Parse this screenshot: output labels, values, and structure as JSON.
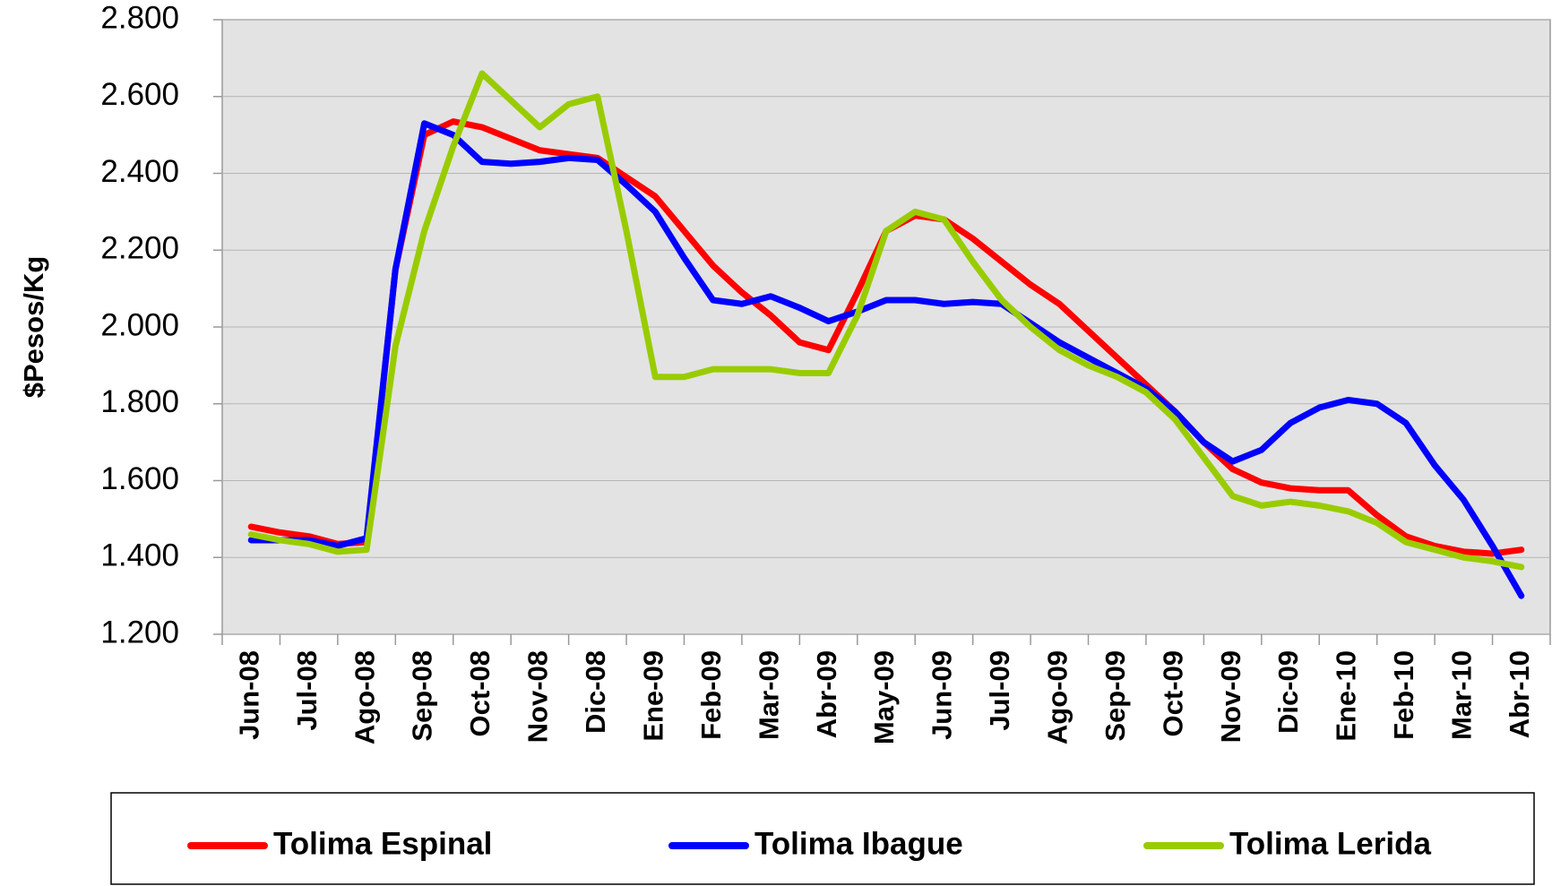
{
  "chart_data": {
    "type": "line",
    "y_label": "$Pesos/Kg",
    "categories": [
      "Jun-08",
      null,
      "Jul-08",
      null,
      "Ago-08",
      null,
      "Sep-08",
      null,
      "Oct-08",
      null,
      "Nov-08",
      null,
      "Dic-08",
      null,
      "Ene-09",
      null,
      "Feb-09",
      null,
      "Mar-09",
      null,
      "Abr-09",
      null,
      "May-09",
      null,
      "Jun-09",
      null,
      "Jul-09",
      null,
      "Ago-09",
      null,
      "Sep-09",
      null,
      "Oct-09",
      null,
      "Nov-09",
      null,
      "Dic-09",
      null,
      "Ene-10",
      null,
      "Feb-10",
      null,
      "Mar-10",
      null,
      "Abr-10"
    ],
    "series": [
      {
        "name": "Tolima Espinal",
        "color": "#ff0000",
        "values": [
          1480,
          1465,
          1455,
          1435,
          1440,
          2150,
          2500,
          2535,
          2520,
          2490,
          2460,
          2450,
          2440,
          2390,
          2340,
          2250,
          2160,
          2090,
          2030,
          1960,
          1940,
          2090,
          2250,
          2290,
          2280,
          2230,
          2170,
          2110,
          2060,
          1990,
          1920,
          1850,
          1780,
          1700,
          1630,
          1595,
          1580,
          1575,
          1575,
          1510,
          1455,
          1430,
          1415,
          1410,
          1420
        ]
      },
      {
        "name": "Tolima Ibague",
        "color": "#0000ff",
        "values": [
          1445,
          1445,
          1445,
          1430,
          1450,
          2150,
          2530,
          2500,
          2430,
          2425,
          2430,
          2440,
          2435,
          2370,
          2300,
          2180,
          2070,
          2060,
          2080,
          2050,
          2015,
          2040,
          2070,
          2070,
          2060,
          2065,
          2060,
          2010,
          1960,
          1920,
          1880,
          1840,
          1780,
          1700,
          1650,
          1680,
          1750,
          1790,
          1810,
          1800,
          1750,
          1640,
          1550,
          1430,
          1300
        ]
      },
      {
        "name": "Tolima Lerida",
        "color": "#99cc00",
        "values": [
          1460,
          1445,
          1435,
          1415,
          1420,
          1950,
          2250,
          2470,
          2660,
          2590,
          2520,
          2580,
          2600,
          2250,
          1870,
          1870,
          1890,
          1890,
          1890,
          1880,
          1880,
          2030,
          2250,
          2300,
          2280,
          2170,
          2070,
          2000,
          1940,
          1900,
          1870,
          1830,
          1760,
          1660,
          1560,
          1535,
          1545,
          1535,
          1520,
          1490,
          1440,
          1420,
          1400,
          1390,
          1375
        ]
      }
    ],
    "ylim": [
      1200,
      2800
    ],
    "yticks": [
      {
        "value": 1200,
        "label": "1.200"
      },
      {
        "value": 1400,
        "label": "1.400"
      },
      {
        "value": 1600,
        "label": "1.600"
      },
      {
        "value": 1800,
        "label": "1.800"
      },
      {
        "value": 2000,
        "label": "2.000"
      },
      {
        "value": 2200,
        "label": "2.200"
      },
      {
        "value": 2400,
        "label": "2.400"
      },
      {
        "value": 2600,
        "label": "2.600"
      },
      {
        "value": 2800,
        "label": "2.800"
      }
    ],
    "grid": true,
    "legend": "bottom"
  }
}
